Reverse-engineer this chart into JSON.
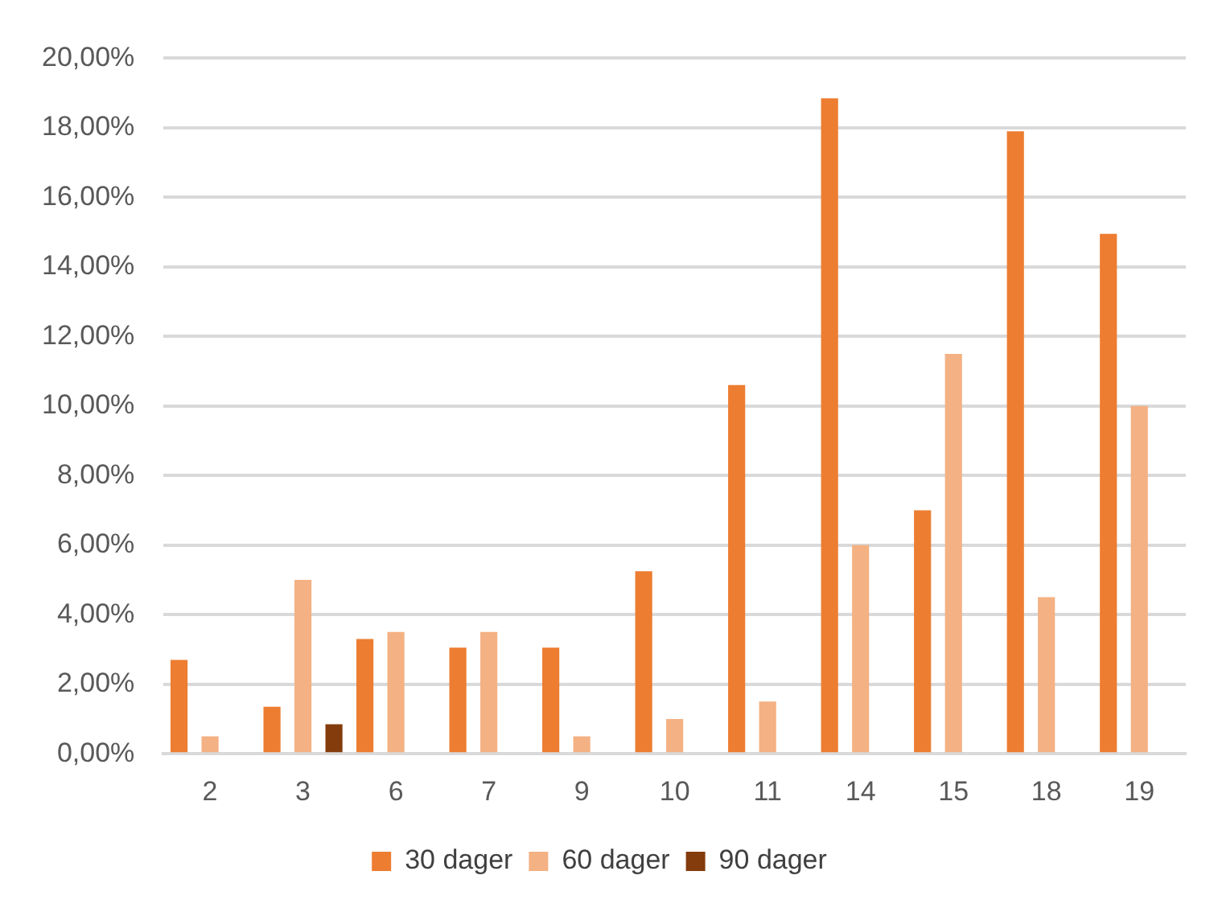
{
  "chart_data": {
    "type": "bar",
    "categories": [
      "2",
      "3",
      "6",
      "7",
      "9",
      "10",
      "11",
      "14",
      "15",
      "18",
      "19"
    ],
    "series": [
      {
        "name": "30 dager",
        "color": "#ed7d31",
        "values": [
          2.7,
          1.35,
          3.3,
          3.05,
          3.05,
          5.25,
          10.6,
          18.85,
          7.0,
          17.9,
          14.95
        ]
      },
      {
        "name": "60 dager",
        "color": "#f4b183",
        "values": [
          0.5,
          5.0,
          3.5,
          3.5,
          0.5,
          1.0,
          1.5,
          6.0,
          11.5,
          4.5,
          10.0
        ]
      },
      {
        "name": "90 dager",
        "color": "#843c0c",
        "values": [
          0,
          0.85,
          0,
          0,
          0,
          0,
          0,
          0,
          0,
          0,
          0
        ]
      }
    ],
    "ylim": [
      0,
      20
    ],
    "yticks": [
      {
        "value": 0,
        "label": "0,00%"
      },
      {
        "value": 2,
        "label": "2,00%"
      },
      {
        "value": 4,
        "label": "4,00%"
      },
      {
        "value": 6,
        "label": "6,00%"
      },
      {
        "value": 8,
        "label": "8,00%"
      },
      {
        "value": 10,
        "label": "10,00%"
      },
      {
        "value": 12,
        "label": "12,00%"
      },
      {
        "value": 14,
        "label": "14,00%"
      },
      {
        "value": 16,
        "label": "16,00%"
      },
      {
        "value": 18,
        "label": "18,00%"
      },
      {
        "value": 20,
        "label": "20,00%"
      }
    ],
    "grid": "y",
    "legend": "bottom"
  }
}
